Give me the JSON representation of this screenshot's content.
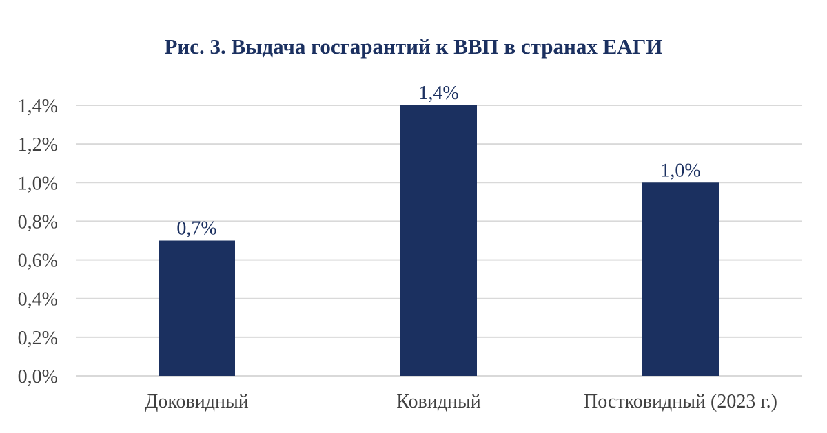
{
  "chart_data": {
    "type": "bar",
    "title": "Рис. 3. Выдача госгарантий к ВВП в странах ЕАГИ",
    "categories": [
      "Доковидный",
      "Ковидный",
      "Постковидный (2023 г.)"
    ],
    "values": [
      0.7,
      1.4,
      1.0
    ],
    "data_labels": [
      "0,7%",
      "1,4%",
      "1,0%"
    ],
    "y_ticks": [
      0.0,
      0.2,
      0.4,
      0.6,
      0.8,
      1.0,
      1.2,
      1.4
    ],
    "y_tick_labels": [
      "0,0%",
      "0,2%",
      "0,4%",
      "0,6%",
      "0,8%",
      "1,0%",
      "1,2%",
      "1,4%"
    ],
    "ylim": [
      0,
      1.4
    ],
    "xlabel": "",
    "ylabel": "",
    "grid": true,
    "legend": "none",
    "bar_color": "#1b3060"
  }
}
